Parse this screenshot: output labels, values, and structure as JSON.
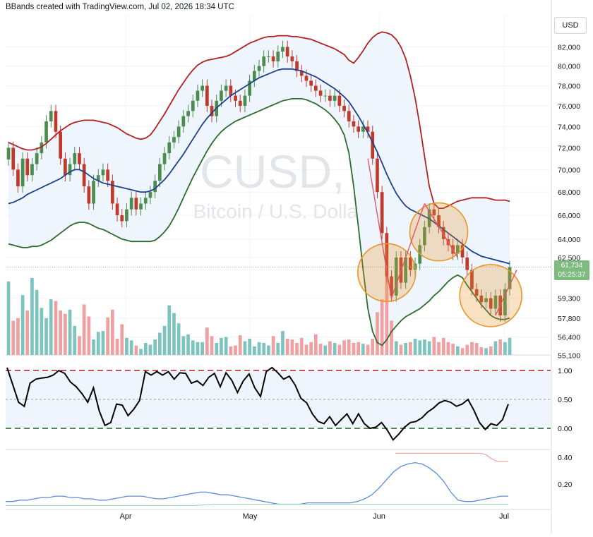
{
  "header": {
    "caption": "BBands created with TradingView.com, Jul 02, 2026 18:34 UTC"
  },
  "currency_button": "USD",
  "watermark": {
    "symbol": "BTCUSD, 1D",
    "description": "Bitcoin / U.S. Dollar"
  },
  "last_price": {
    "value": "61,734",
    "countdown": "05:25:37",
    "color": "#7dbb7f"
  },
  "colors": {
    "up_candle": "#4c8c4f",
    "down_candle": "#c0392b",
    "upper_band": "#b22222",
    "basis": "#1f3f8f",
    "lower_band": "#2e6b2e",
    "band_fill": "#eef5fd",
    "volume_up": "#7dc4bf",
    "volume_down": "#f0a0a0",
    "highlight_circle": "#e8962a",
    "oscillator": "#000000",
    "width_line": "#5b8ed6",
    "threshold_line": "#b71c1c"
  },
  "chart_data": [
    {
      "type": "candlestick",
      "title": "",
      "x_axis": {
        "tick_labels": [
          "Apr",
          "May",
          "Jun",
          "Jul"
        ]
      },
      "y_axis": {
        "tick_labels": [
          "82,000",
          "80,000",
          "78,000",
          "76,000",
          "74,000",
          "72,000",
          "70,000",
          "68,000",
          "66,000",
          "64,000",
          "62,500",
          "59,300",
          "57,800",
          "56,400",
          "55,100"
        ],
        "scale": "log",
        "range": [
          55100,
          83500
        ]
      },
      "close": [
        72000,
        70000,
        68500,
        71000,
        69500,
        70500,
        71500,
        72500,
        74500,
        75500,
        73500,
        71000,
        69500,
        70500,
        71500,
        70500,
        68500,
        67000,
        69000,
        69500,
        70000,
        69000,
        67000,
        66000,
        65500,
        66500,
        67500,
        66500,
        67000,
        67500,
        68000,
        69000,
        70500,
        71500,
        72500,
        73000,
        74000,
        75000,
        75500,
        76500,
        77500,
        78000,
        76000,
        75000,
        76500,
        77500,
        78000,
        77000,
        76500,
        76000,
        77000,
        78500,
        79500,
        80000,
        81000,
        81000,
        80500,
        81500,
        82000,
        81000,
        80500,
        79500,
        79000,
        78500,
        78000,
        77500,
        77000,
        77000,
        76500,
        77000,
        76000,
        75500,
        74500,
        74000,
        73500,
        74000,
        73500,
        71000,
        68000,
        64500,
        61000,
        59500,
        62500,
        60500,
        62500,
        61500,
        62000,
        63500,
        65000,
        66500,
        66000,
        65000,
        64000,
        63500,
        62800,
        63500,
        62500,
        61500,
        60000,
        59500,
        59000,
        59300,
        58500,
        59500,
        58000,
        60000,
        61734
      ],
      "upper_band": [
        72500,
        72300,
        72100,
        71900,
        71800,
        71800,
        71900,
        72100,
        72400,
        72800,
        73200,
        73600,
        73900,
        74200,
        74400,
        74500,
        74600,
        74600,
        74600,
        74500,
        74400,
        74300,
        74100,
        73900,
        73600,
        73300,
        73100,
        72900,
        72800,
        72900,
        73200,
        73800,
        74500,
        75200,
        76000,
        76800,
        77600,
        78300,
        79000,
        79600,
        80100,
        80400,
        80600,
        80700,
        80800,
        80900,
        81000,
        81200,
        81500,
        81800,
        82100,
        82400,
        82600,
        82800,
        83000,
        83100,
        83100,
        83200,
        83200,
        83200,
        83100,
        83100,
        83000,
        82900,
        82800,
        82600,
        82400,
        82200,
        82000,
        81800,
        81500,
        81200,
        80600,
        80300,
        80900,
        81600,
        82400,
        83000,
        83400,
        83600,
        83500,
        83300,
        82800,
        82000,
        80800,
        79000,
        76800,
        74100,
        71200,
        68500,
        67000,
        66600,
        66600,
        66800,
        67000,
        67200,
        67300,
        67400,
        67500,
        67500,
        67500,
        67500,
        67400,
        67300,
        67300,
        67300,
        67200
      ],
      "basis": [
        67000,
        67100,
        67300,
        67500,
        67800,
        68000,
        68200,
        68400,
        68600,
        68800,
        69000,
        69200,
        69500,
        69800,
        70000,
        70000,
        69800,
        69500,
        69200,
        69000,
        68800,
        68700,
        68600,
        68500,
        68400,
        68300,
        68200,
        68100,
        68000,
        68000,
        68100,
        68300,
        68700,
        69100,
        69600,
        70200,
        70800,
        71400,
        72100,
        72800,
        73500,
        74200,
        74800,
        75300,
        75800,
        76200,
        76600,
        77000,
        77300,
        77600,
        77900,
        78200,
        78500,
        78800,
        79000,
        79200,
        79400,
        79600,
        79700,
        79700,
        79700,
        79600,
        79500,
        79300,
        79100,
        78900,
        78600,
        78300,
        78000,
        77700,
        77300,
        76900,
        76400,
        75700,
        75000,
        74200,
        73400,
        72500,
        71600,
        70600,
        69600,
        68700,
        67900,
        67300,
        66800,
        66500,
        66300,
        66100,
        65900,
        65700,
        65400,
        65100,
        64800,
        64500,
        64200,
        63900,
        63600,
        63300,
        63000,
        62800,
        62600,
        62500,
        62400,
        62300,
        62200,
        62100,
        62000
      ],
      "lower_band": [
        63600,
        63500,
        63400,
        63300,
        63300,
        63400,
        63400,
        63500,
        63700,
        63900,
        64200,
        64500,
        64800,
        65100,
        65300,
        65400,
        65400,
        65300,
        65100,
        64900,
        64800,
        64600,
        64400,
        64200,
        64000,
        63900,
        63800,
        63800,
        63800,
        63800,
        63800,
        63900,
        64200,
        64600,
        65100,
        65800,
        66600,
        67500,
        68400,
        69300,
        70100,
        70900,
        71700,
        72400,
        73000,
        73500,
        73900,
        74200,
        74500,
        74700,
        74900,
        75100,
        75300,
        75500,
        75700,
        75900,
        76100,
        76300,
        76500,
        76600,
        76700,
        76700,
        76700,
        76600,
        76400,
        76200,
        75900,
        75600,
        75200,
        74700,
        74100,
        73200,
        71500,
        68500,
        65000,
        61500,
        58500,
        56800,
        56000,
        55800,
        56200,
        56800,
        57200,
        57600,
        57900,
        58100,
        58300,
        58500,
        58800,
        59100,
        59500,
        59800,
        60200,
        60600,
        60900,
        61100,
        60900,
        60300,
        59800,
        59300,
        58800,
        58400,
        58000,
        57800,
        57700,
        57700,
        57800
      ],
      "volume": [
        86,
        40,
        43,
        70,
        52,
        90,
        76,
        55,
        43,
        65,
        63,
        52,
        48,
        53,
        34,
        22,
        59,
        45,
        18,
        27,
        28,
        44,
        53,
        19,
        36,
        20,
        17,
        11,
        7,
        14,
        12,
        18,
        26,
        34,
        58,
        49,
        37,
        22,
        24,
        17,
        15,
        15,
        32,
        22,
        14,
        20,
        21,
        10,
        11,
        23,
        16,
        19,
        10,
        15,
        14,
        11,
        22,
        14,
        28,
        19,
        18,
        14,
        20,
        12,
        15,
        24,
        13,
        11,
        16,
        14,
        12,
        17,
        18,
        14,
        15,
        13,
        12,
        19,
        50,
        65,
        99,
        40,
        16,
        12,
        14,
        15,
        19,
        17,
        18,
        16,
        21,
        15,
        20,
        15,
        13,
        10,
        8,
        12,
        15,
        14,
        9,
        8,
        10,
        16,
        18,
        15,
        20
      ]
    },
    {
      "type": "line",
      "title": "",
      "y_axis": {
        "tick_labels": [
          "1.00",
          "0.50",
          "0.00"
        ],
        "range": [
          -0.25,
          1.2
        ]
      },
      "reference_lines": [
        1.0,
        0.5,
        0.0
      ],
      "series": [
        {
          "values": [
            1.05,
            0.75,
            0.45,
            0.38,
            0.78,
            0.85,
            0.87,
            0.88,
            0.92,
            1.0,
            0.95,
            0.8,
            0.72,
            0.6,
            0.45,
            0.7,
            0.3,
            0.05,
            0.1,
            0.42,
            0.4,
            0.22,
            0.33,
            0.48,
            0.98,
            0.92,
            0.98,
            0.92,
            0.98,
            0.85,
            0.96,
            0.95,
            0.78,
            0.82,
            0.74,
            0.88,
            0.95,
            0.72,
            0.96,
            0.83,
            0.62,
            0.82,
            0.94,
            0.7,
            0.55,
            0.98,
            1.05,
            0.96,
            0.85,
            0.9,
            0.75,
            0.52,
            0.44,
            0.25,
            0.12,
            0.08,
            0.2,
            0.05,
            0.15,
            0.25,
            0.08,
            0.25,
            0.08,
            0.0,
            0.02,
            0.1,
            -0.03,
            -0.2,
            -0.1,
            0.02,
            0.1,
            0.12,
            0.18,
            0.28,
            0.35,
            0.44,
            0.48,
            0.45,
            0.38,
            0.42,
            0.5,
            0.32,
            0.1,
            -0.02,
            0.08,
            0.05,
            0.15,
            0.42
          ]
        }
      ]
    },
    {
      "type": "line",
      "title": "",
      "y_axis": {
        "tick_labels": [
          "0.40",
          "0.20"
        ],
        "range": [
          0.0,
          0.45
        ]
      },
      "series": [
        {
          "values": [
            0.07,
            0.07,
            0.08,
            0.08,
            0.09,
            0.1,
            0.1,
            0.11,
            0.11,
            0.1,
            0.1,
            0.09,
            0.09,
            0.08,
            0.08,
            0.09,
            0.1,
            0.11,
            0.11,
            0.11,
            0.1,
            0.09,
            0.09,
            0.1,
            0.11,
            0.12,
            0.13,
            0.14,
            0.14,
            0.13,
            0.12,
            0.12,
            0.11,
            0.1,
            0.09,
            0.08,
            0.07,
            0.06,
            0.05,
            0.05,
            0.05,
            0.05,
            0.06,
            0.06,
            0.06,
            0.06,
            0.06,
            0.06,
            0.06,
            0.07,
            0.09,
            0.12,
            0.17,
            0.23,
            0.29,
            0.33,
            0.35,
            0.36,
            0.35,
            0.32,
            0.28,
            0.22,
            0.14,
            0.08,
            0.07,
            0.07,
            0.08,
            0.09,
            0.1,
            0.11,
            0.11
          ]
        },
        {
          "values": [
            0.43,
            0.43,
            0.43,
            0.43,
            0.43,
            0.43,
            0.43,
            0.43,
            0.43,
            0.43,
            0.43,
            0.43,
            0.43,
            0.43,
            0.43,
            0.43,
            0.42,
            0.39,
            0.37,
            0.37,
            0.37
          ]
        },
        {
          "values": [
            0.04,
            0.04,
            0.04,
            0.04,
            0.04,
            0.04,
            0.04,
            0.04,
            0.04,
            0.04,
            0.05,
            0.05,
            0.05,
            0.05,
            0.05,
            0.05,
            0.05,
            0.05,
            0.05,
            0.05,
            0.05,
            0.05,
            0.05,
            0.05,
            0.05
          ]
        }
      ]
    }
  ]
}
